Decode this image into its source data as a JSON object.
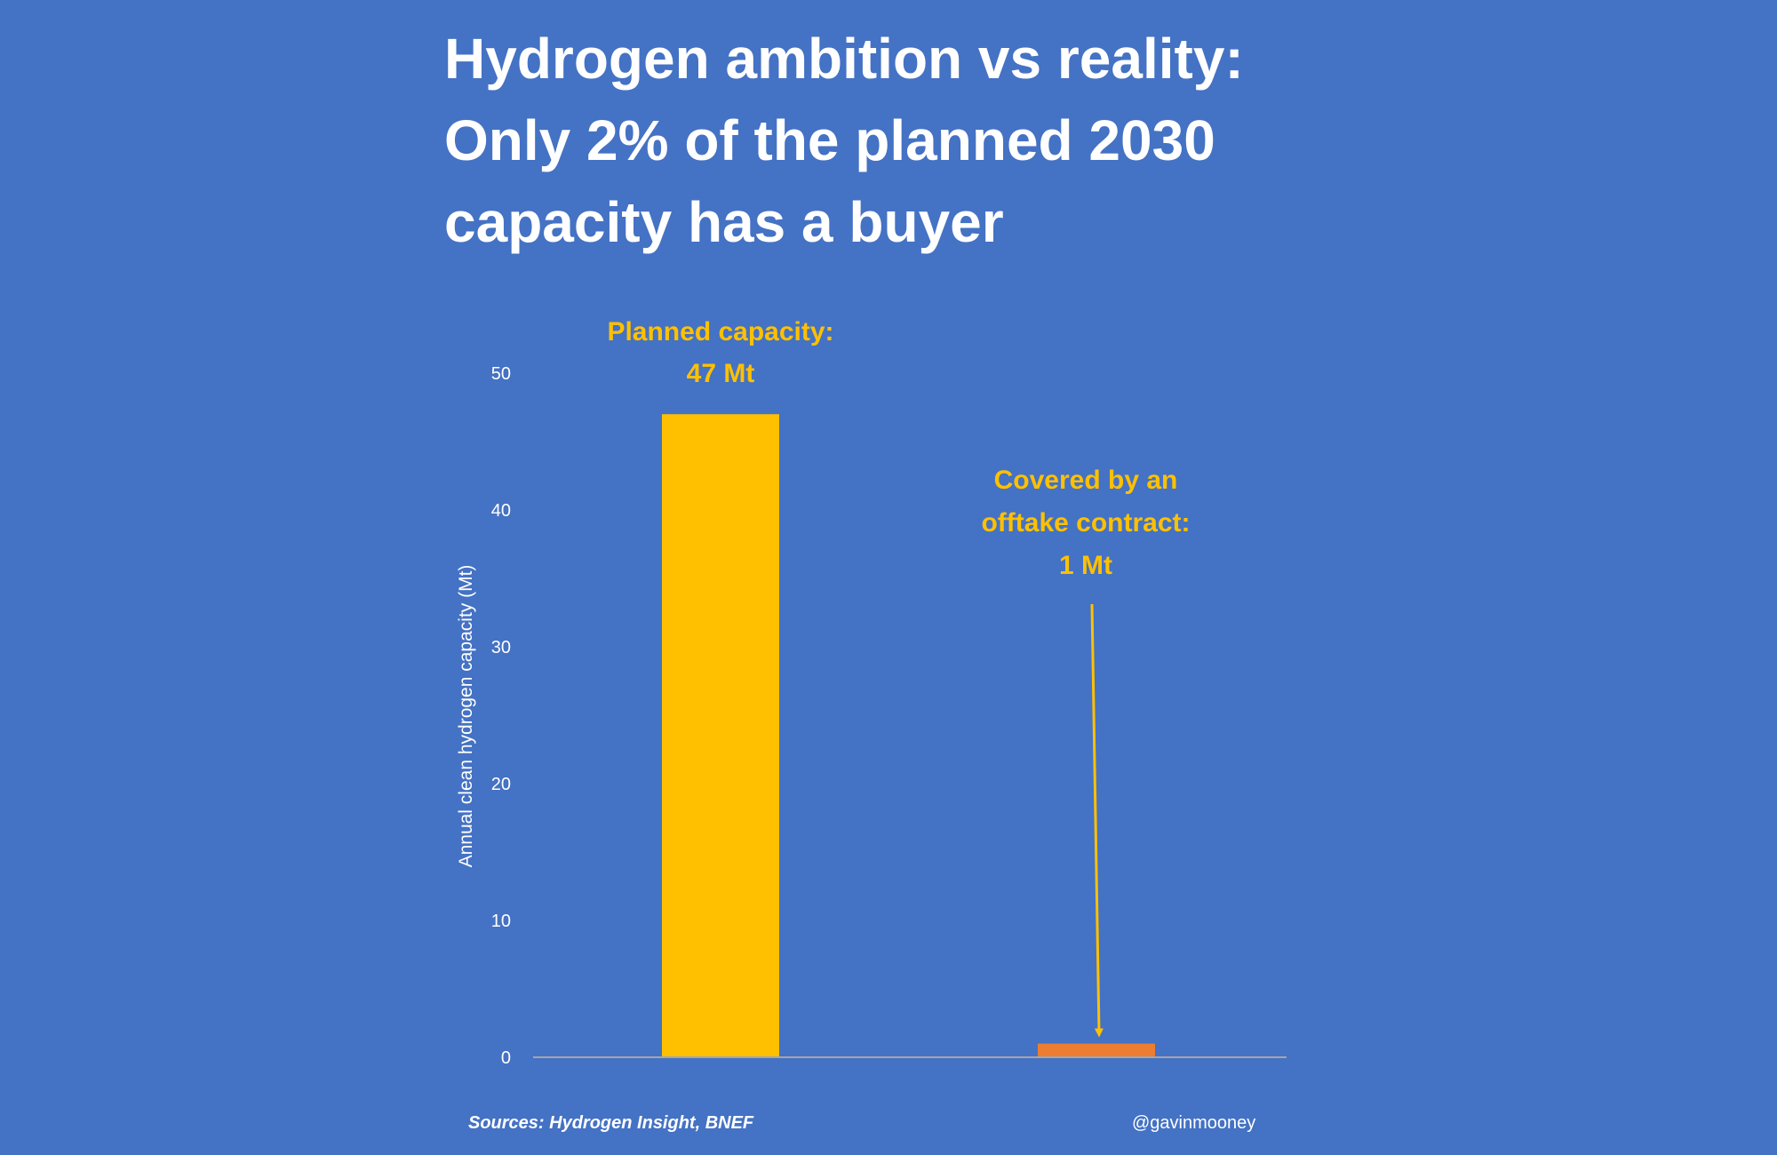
{
  "title_lines": [
    "Hydrogen ambition vs reality:",
    "Only 2% of the planned 2030",
    "capacity has a buyer"
  ],
  "footer": {
    "source": "Sources: Hydrogen Insight, BNEF",
    "handle": "@gavinmooney"
  },
  "chart_data": {
    "type": "bar",
    "categories": [
      "Planned capacity",
      "Covered by an offtake contract"
    ],
    "values": [
      47,
      1
    ],
    "bar_colors": [
      "#ffc000",
      "#ed7d31"
    ],
    "ylabel": "Annual clean hydrogen capacity (Mt)",
    "ylim": [
      0,
      50
    ],
    "yticks": [
      0,
      10,
      20,
      30,
      40,
      50
    ],
    "grid": false,
    "annotations": [
      {
        "lines": [
          "Planned capacity:",
          "47 Mt"
        ],
        "color": "#ffc000"
      },
      {
        "lines": [
          "Covered by an",
          "offtake contract:",
          "1 Mt"
        ],
        "color": "#ffc000",
        "arrow": true
      }
    ]
  },
  "colors": {
    "background": "#4472c4",
    "text": "#ffffff",
    "axis_line": "#a6a6a6",
    "annotation": "#ffc000"
  }
}
